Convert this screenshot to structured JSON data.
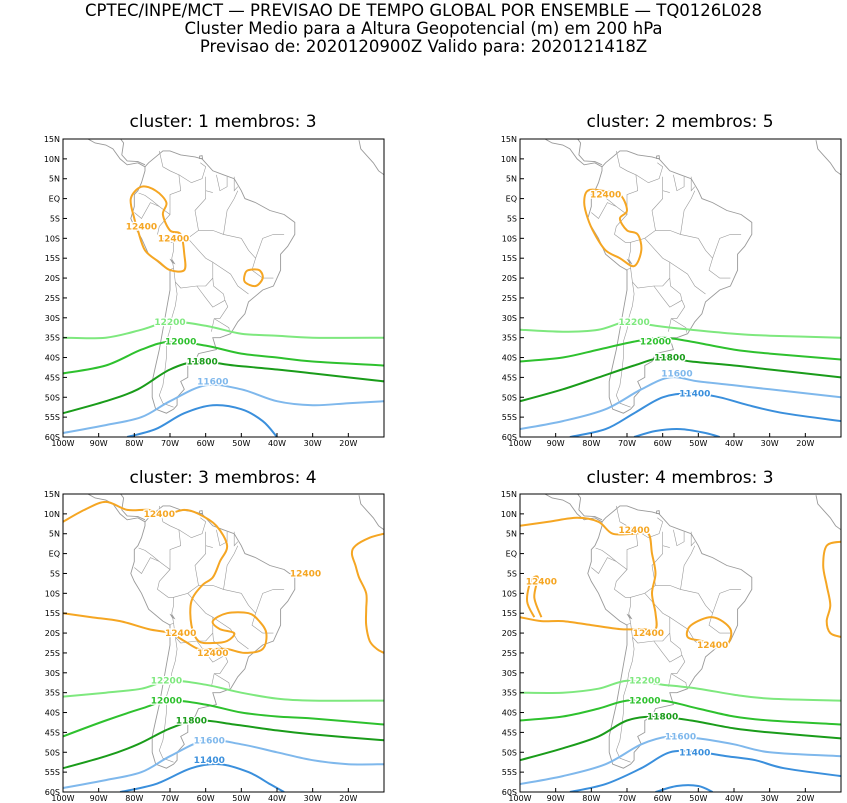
{
  "header": {
    "line1": "CPTEC/INPE/MCT — PREVISAO DE TEMPO GLOBAL POR ENSEMBLE — TQ0126L028",
    "line2": "Cluster Medio para a Altura Geopotencial (m) em 200 hPa",
    "line3": "Previsao de: 2020120900Z    Valido para: 2020121418Z"
  },
  "axes": {
    "lat_labels": [
      "15N",
      "10N",
      "5N",
      "EQ",
      "5S",
      "10S",
      "15S",
      "20S",
      "25S",
      "30S",
      "35S",
      "40S",
      "45S",
      "50S",
      "55S",
      "60S"
    ],
    "lon_labels": [
      "100W",
      "90W",
      "80W",
      "70W",
      "60W",
      "50W",
      "40W",
      "30W",
      "20W"
    ]
  },
  "colors": {
    "c12400": "#f5a623",
    "c12200": "#7ee87e",
    "c12000": "#2ec12e",
    "c11800": "#1a9c1a",
    "c11600": "#7fb8ec",
    "c11400": "#3a8fdc",
    "coast": "#9a9a9a",
    "frame": "#000000"
  },
  "panels": [
    {
      "title": "cluster: 1   membros: 3",
      "labels": [
        {
          "text": "12400",
          "color": "c12400",
          "lon": -78,
          "lat": -7
        },
        {
          "text": "12400",
          "color": "c12400",
          "lon": -69,
          "lat": -10
        },
        {
          "text": "12200",
          "color": "c12200",
          "lon": -70,
          "lat": -31
        },
        {
          "text": "12000",
          "color": "c12000",
          "lon": -67,
          "lat": -36
        },
        {
          "text": "11800",
          "color": "c11800",
          "lon": -61,
          "lat": -41
        },
        {
          "text": "11600",
          "color": "c11600",
          "lon": -58,
          "lat": -46
        }
      ]
    },
    {
      "title": "cluster: 2   membros: 5",
      "labels": [
        {
          "text": "12400",
          "color": "c12400",
          "lon": -76,
          "lat": 1
        },
        {
          "text": "12200",
          "color": "c12200",
          "lon": -68,
          "lat": -31
        },
        {
          "text": "12000",
          "color": "c12000",
          "lon": -62,
          "lat": -36
        },
        {
          "text": "11800",
          "color": "c11800",
          "lon": -58,
          "lat": -40
        },
        {
          "text": "11600",
          "color": "c11600",
          "lon": -56,
          "lat": -44
        },
        {
          "text": "11400",
          "color": "c11400",
          "lon": -51,
          "lat": -49
        }
      ]
    },
    {
      "title": "cluster: 3   membros: 4",
      "labels": [
        {
          "text": "12400",
          "color": "c12400",
          "lon": -73,
          "lat": 10
        },
        {
          "text": "12400",
          "color": "c12400",
          "lon": -32,
          "lat": -5
        },
        {
          "text": "12400",
          "color": "c12400",
          "lon": -67,
          "lat": -20
        },
        {
          "text": "12400",
          "color": "c12400",
          "lon": -58,
          "lat": -25
        },
        {
          "text": "12200",
          "color": "c12200",
          "lon": -71,
          "lat": -32
        },
        {
          "text": "12000",
          "color": "c12000",
          "lon": -71,
          "lat": -37
        },
        {
          "text": "11800",
          "color": "c11800",
          "lon": -64,
          "lat": -42
        },
        {
          "text": "11600",
          "color": "c11600",
          "lon": -59,
          "lat": -47
        },
        {
          "text": "11400",
          "color": "c11400",
          "lon": -59,
          "lat": -52
        }
      ]
    },
    {
      "title": "cluster: 4   membros: 3",
      "labels": [
        {
          "text": "12400",
          "color": "c12400",
          "lon": -68,
          "lat": 6
        },
        {
          "text": "12400",
          "color": "c12400",
          "lon": -94,
          "lat": -7
        },
        {
          "text": "12400",
          "color": "c12400",
          "lon": -64,
          "lat": -20
        },
        {
          "text": "12400",
          "color": "c12400",
          "lon": -46,
          "lat": -23
        },
        {
          "text": "12200",
          "color": "c12200",
          "lon": -65,
          "lat": -32
        },
        {
          "text": "12000",
          "color": "c12000",
          "lon": -65,
          "lat": -37
        },
        {
          "text": "11800",
          "color": "c11800",
          "lon": -60,
          "lat": -41
        },
        {
          "text": "11600",
          "color": "c11600",
          "lon": -55,
          "lat": -46
        },
        {
          "text": "11400",
          "color": "c11400",
          "lon": -51,
          "lat": -50
        }
      ]
    }
  ]
}
